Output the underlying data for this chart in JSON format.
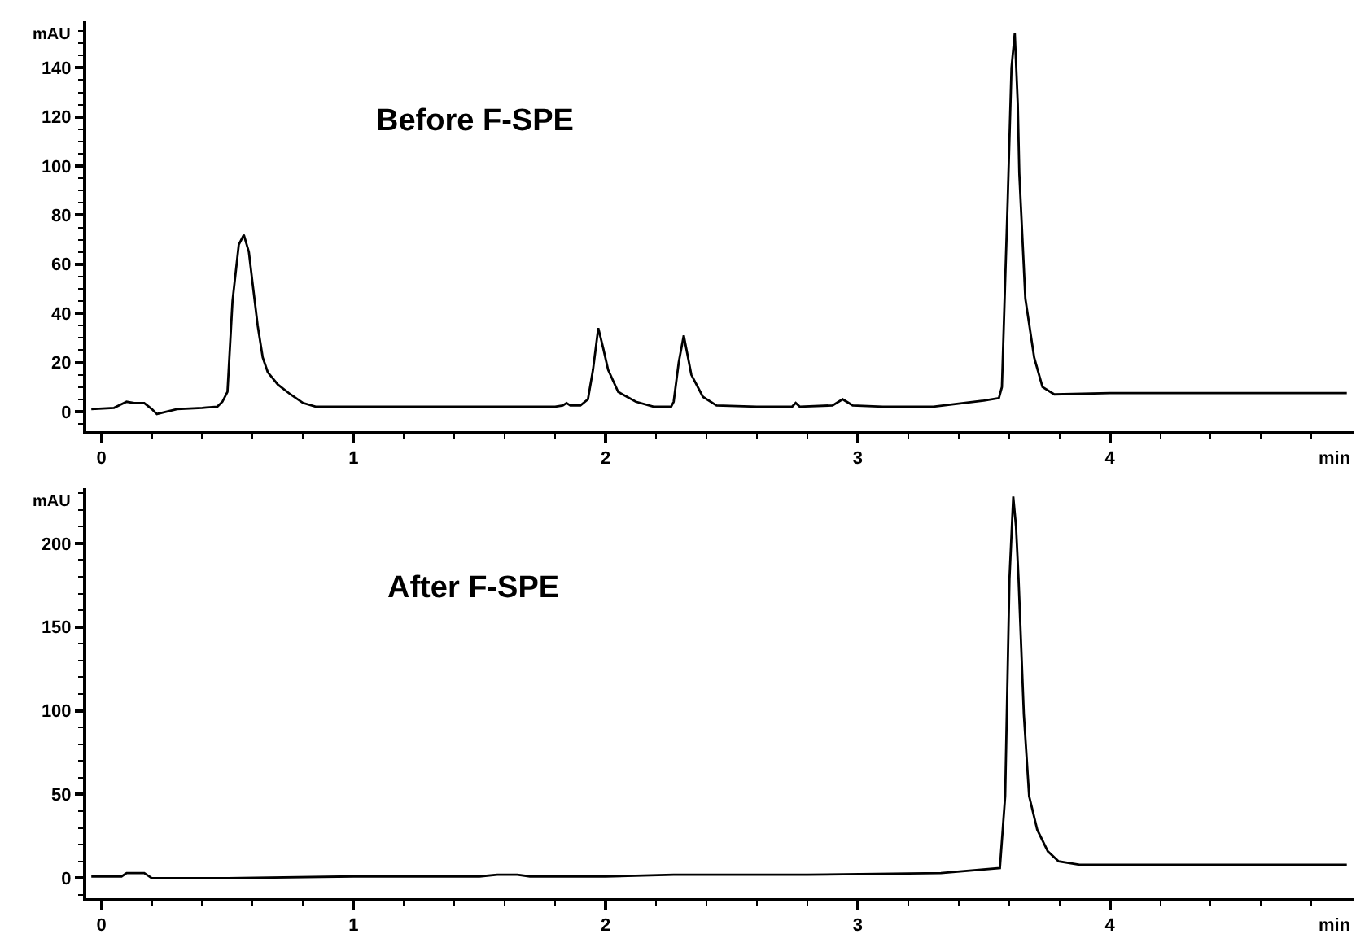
{
  "chart_data": [
    {
      "type": "line",
      "xlabel": "min",
      "ylabel": "mAU",
      "annotations": [
        "Before F-SPE"
      ],
      "color": "#000000",
      "x": [
        -0.04,
        0.05,
        0.08,
        0.1,
        0.13,
        0.17,
        0.2,
        0.22,
        0.3,
        0.4,
        0.46,
        0.48,
        0.5,
        0.52,
        0.545,
        0.565,
        0.585,
        0.6,
        0.62,
        0.64,
        0.66,
        0.7,
        0.75,
        0.8,
        0.85,
        1.2,
        1.5,
        1.8,
        1.83,
        1.845,
        1.86,
        1.9,
        1.93,
        1.95,
        1.971,
        1.99,
        2.01,
        2.05,
        2.12,
        2.19,
        2.26,
        2.27,
        2.29,
        2.31,
        2.34,
        2.386,
        2.44,
        2.6,
        2.74,
        2.754,
        2.77,
        2.9,
        2.94,
        2.98,
        3.1,
        3.3,
        3.5,
        3.56,
        3.572,
        3.584,
        3.595,
        3.61,
        3.623,
        3.635,
        3.641,
        3.665,
        3.7,
        3.733,
        3.78,
        4.0,
        4.5,
        4.94
      ],
      "values": [
        1,
        1.5,
        3,
        4,
        3.5,
        3.5,
        1,
        -1,
        1,
        1.5,
        2,
        4,
        8,
        45,
        68,
        72,
        65,
        52,
        35,
        22,
        16,
        11,
        7,
        3.5,
        2,
        2,
        2,
        2,
        2.5,
        3.5,
        2.5,
        2.5,
        5,
        17,
        34,
        26,
        17,
        8,
        4,
        2,
        2,
        4,
        20,
        31,
        15,
        6,
        2.5,
        2,
        2,
        3.5,
        2,
        2.5,
        5,
        2.5,
        2,
        2,
        4.5,
        5.5,
        10,
        50,
        86,
        140,
        154,
        125,
        97,
        46,
        22,
        10,
        7,
        7.5,
        7.5,
        7.5
      ],
      "xlim": [
        -0.06,
        4.97
      ],
      "xticks": [
        0,
        {
          "value": 0.2,
          "label": null
        },
        {
          "value": 0.4,
          "label": null
        },
        {
          "value": 0.6,
          "label": null
        },
        {
          "value": 0.8,
          "label": null
        },
        1,
        {
          "value": 1.2,
          "label": null
        },
        {
          "value": 1.4,
          "label": null
        },
        {
          "value": 1.6,
          "label": null
        },
        {
          "value": 1.8,
          "label": null
        },
        2,
        {
          "value": 2.2,
          "label": null
        },
        {
          "value": 2.4,
          "label": null
        },
        {
          "value": 2.6,
          "label": null
        },
        {
          "value": 2.8,
          "label": null
        },
        3,
        {
          "value": 3.2,
          "label": null
        },
        {
          "value": 3.4,
          "label": null
        },
        {
          "value": 3.6,
          "label": null
        },
        {
          "value": 3.8,
          "label": null
        },
        4,
        {
          "value": 4.2,
          "label": null
        },
        {
          "value": 4.4,
          "label": null
        },
        {
          "value": 4.6,
          "label": null
        },
        {
          "value": 4.8,
          "label": null
        }
      ],
      "ylim": [
        -8,
        159
      ],
      "yticks": [
        {
          "value": -5,
          "label": null
        },
        0,
        {
          "value": 5,
          "label": null
        },
        {
          "value": 10,
          "label": null
        },
        {
          "value": 15,
          "label": null
        },
        20,
        {
          "value": 25,
          "label": null
        },
        {
          "value": 30,
          "label": null
        },
        {
          "value": 35,
          "label": null
        },
        40,
        {
          "value": 45,
          "label": null
        },
        {
          "value": 50,
          "label": null
        },
        {
          "value": 55,
          "label": null
        },
        60,
        {
          "value": 65,
          "label": null
        },
        {
          "value": 70,
          "label": null
        },
        {
          "value": 75,
          "label": null
        },
        80,
        {
          "value": 85,
          "label": null
        },
        {
          "value": 90,
          "label": null
        },
        {
          "value": 95,
          "label": null
        },
        100,
        {
          "value": 105,
          "label": null
        },
        {
          "value": 110,
          "label": null
        },
        {
          "value": 115,
          "label": null
        },
        120,
        {
          "value": 125,
          "label": null
        },
        {
          "value": 130,
          "label": null
        },
        {
          "value": 135,
          "label": null
        },
        140,
        {
          "value": 145,
          "label": null
        },
        {
          "value": 150,
          "label": null
        },
        {
          "value": 155,
          "label": null
        }
      ]
    },
    {
      "type": "line",
      "xlabel": "min",
      "ylabel": "mAU",
      "annotations": [
        "After F-SPE"
      ],
      "color": "#000000",
      "x": [
        -0.04,
        0.08,
        0.1,
        0.17,
        0.2,
        0.5,
        1.0,
        1.5,
        1.57,
        1.65,
        1.7,
        2.0,
        2.27,
        2.8,
        3.33,
        3.564,
        3.585,
        3.602,
        3.617,
        3.628,
        3.638,
        3.659,
        3.68,
        3.712,
        3.754,
        3.797,
        3.88,
        4.2,
        4.94
      ],
      "values": [
        1,
        1,
        3,
        3,
        0,
        0,
        1,
        1,
        2,
        2,
        1,
        1,
        2,
        2,
        3,
        6,
        49,
        179,
        228,
        210,
        179,
        98,
        49,
        29,
        16,
        10,
        8,
        8,
        8
      ],
      "xlim": [
        -0.06,
        4.97
      ],
      "xticks": [
        0,
        {
          "value": 0.2,
          "label": null
        },
        {
          "value": 0.4,
          "label": null
        },
        {
          "value": 0.6,
          "label": null
        },
        {
          "value": 0.8,
          "label": null
        },
        1,
        {
          "value": 1.2,
          "label": null
        },
        {
          "value": 1.4,
          "label": null
        },
        {
          "value": 1.6,
          "label": null
        },
        {
          "value": 1.8,
          "label": null
        },
        2,
        {
          "value": 2.2,
          "label": null
        },
        {
          "value": 2.4,
          "label": null
        },
        {
          "value": 2.6,
          "label": null
        },
        {
          "value": 2.8,
          "label": null
        },
        3,
        {
          "value": 3.2,
          "label": null
        },
        {
          "value": 3.4,
          "label": null
        },
        {
          "value": 3.6,
          "label": null
        },
        {
          "value": 3.8,
          "label": null
        },
        4,
        {
          "value": 4.2,
          "label": null
        },
        {
          "value": 4.4,
          "label": null
        },
        {
          "value": 4.6,
          "label": null
        },
        {
          "value": 4.8,
          "label": null
        }
      ],
      "ylim": [
        -12,
        233
      ],
      "yticks": [
        {
          "value": -10,
          "label": null
        },
        0,
        {
          "value": 10,
          "label": null
        },
        {
          "value": 20,
          "label": null
        },
        {
          "value": 30,
          "label": null
        },
        {
          "value": 40,
          "label": null
        },
        50,
        {
          "value": 60,
          "label": null
        },
        {
          "value": 70,
          "label": null
        },
        {
          "value": 80,
          "label": null
        },
        {
          "value": 90,
          "label": null
        },
        100,
        {
          "value": 110,
          "label": null
        },
        {
          "value": 120,
          "label": null
        },
        {
          "value": 130,
          "label": null
        },
        {
          "value": 140,
          "label": null
        },
        150,
        {
          "value": 160,
          "label": null
        },
        {
          "value": 170,
          "label": null
        },
        {
          "value": 180,
          "label": null
        },
        {
          "value": 190,
          "label": null
        },
        200,
        {
          "value": 210,
          "label": null
        },
        {
          "value": 220,
          "label": null
        },
        {
          "value": 230,
          "label": null
        }
      ]
    }
  ]
}
